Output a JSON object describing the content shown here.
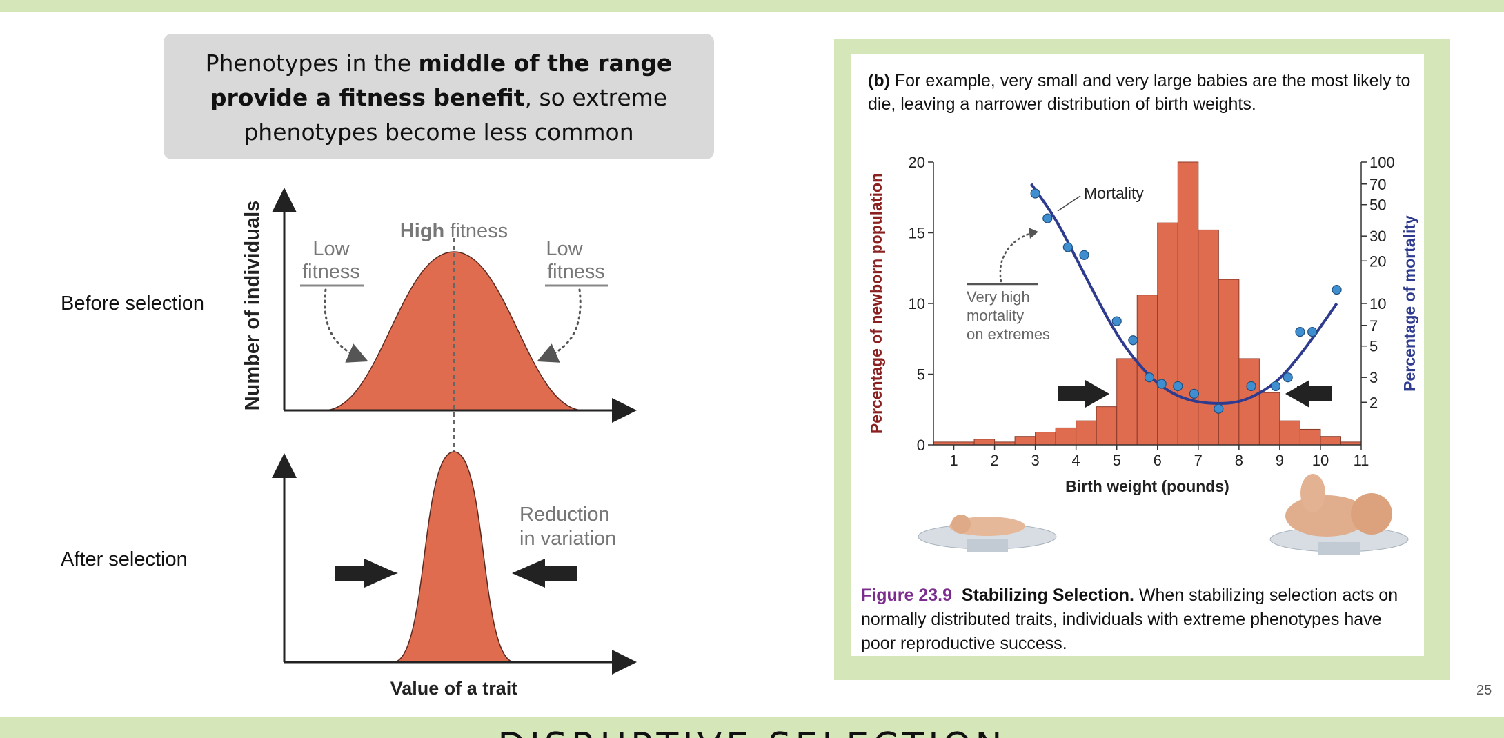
{
  "callout": {
    "line1_pre": "Phenotypes in the ",
    "line1_bold": "middle of the range",
    "line2_bold": "provide a fitness benefit",
    "line2_post": ", so extreme",
    "line3": "phenotypes become less common"
  },
  "left_diagram": {
    "before_label": "Before selection",
    "after_label": "After selection",
    "y_axis_label": "Number of individuals",
    "x_axis_label": "Value of a trait",
    "high_bold": "High",
    "high_rest": " fitness",
    "low_left_1": "Low",
    "low_left_2": "fitness",
    "low_right_1": "Low",
    "low_right_2": "fitness",
    "reduction_1": "Reduction",
    "reduction_2": "in variation",
    "curve_color": "#e06c50",
    "arrow_color": "#222222"
  },
  "figure": {
    "desc_bold": "(b)",
    "desc_text": " For example, very small and very large babies are the most likely to die, leaving a narrower distribution of birth weights.",
    "caption_num": "Figure 23.9",
    "caption_title": "Stabilizing Selection.",
    "caption_text": " When stabilizing selection acts on normally distributed traits, individuals with extreme phenotypes have poor reproductive success.",
    "mortality_label": "Mortality",
    "extremes_1": "Very high",
    "extremes_2": "mortality",
    "extremes_3": "on extremes"
  },
  "chart_data": {
    "type": "bar",
    "xlabel": "Birth weight (pounds)",
    "ylabel": "Percentage of newborn population",
    "ylabel_right": "Percentage of mortality",
    "x_ticks": [
      "1",
      "2",
      "3",
      "4",
      "5",
      "6",
      "7",
      "8",
      "9",
      "10",
      "11"
    ],
    "y_ticks": [
      "0",
      "5",
      "10",
      "15",
      "20"
    ],
    "y_right_ticks": [
      "100",
      "70",
      "50",
      "30",
      "20",
      "10",
      "7",
      "5",
      "3",
      "2"
    ],
    "xlim": [
      0.5,
      11
    ],
    "ylim": [
      0,
      20
    ],
    "yright_scale": "log",
    "yright_lim": [
      1,
      100
    ],
    "bins": [
      {
        "x0": 0.5,
        "x1": 1.5,
        "value": 0.2
      },
      {
        "x0": 1.5,
        "x1": 2.0,
        "value": 0.4
      },
      {
        "x0": 2.0,
        "x1": 2.5,
        "value": 0.2
      },
      {
        "x0": 2.5,
        "x1": 3.0,
        "value": 0.6
      },
      {
        "x0": 3.0,
        "x1": 3.5,
        "value": 0.9
      },
      {
        "x0": 3.5,
        "x1": 4.0,
        "value": 1.2
      },
      {
        "x0": 4.0,
        "x1": 4.5,
        "value": 1.7
      },
      {
        "x0": 4.5,
        "x1": 5.0,
        "value": 2.7
      },
      {
        "x0": 5.0,
        "x1": 5.5,
        "value": 6.1
      },
      {
        "x0": 5.5,
        "x1": 6.0,
        "value": 10.6
      },
      {
        "x0": 6.0,
        "x1": 6.5,
        "value": 15.7
      },
      {
        "x0": 6.5,
        "x1": 7.0,
        "value": 20.0
      },
      {
        "x0": 7.0,
        "x1": 7.5,
        "value": 15.2
      },
      {
        "x0": 7.5,
        "x1": 8.0,
        "value": 11.7
      },
      {
        "x0": 8.0,
        "x1": 8.5,
        "value": 6.1
      },
      {
        "x0": 8.5,
        "x1": 9.0,
        "value": 3.7
      },
      {
        "x0": 9.0,
        "x1": 9.5,
        "value": 1.7
      },
      {
        "x0": 9.5,
        "x1": 10.0,
        "value": 1.1
      },
      {
        "x0": 10.0,
        "x1": 10.5,
        "value": 0.6
      },
      {
        "x0": 10.5,
        "x1": 11.0,
        "value": 0.2
      }
    ],
    "mortality_points": [
      {
        "x": 3.0,
        "y": 60
      },
      {
        "x": 3.3,
        "y": 40
      },
      {
        "x": 3.8,
        "y": 25
      },
      {
        "x": 4.2,
        "y": 22
      },
      {
        "x": 5.0,
        "y": 7.5
      },
      {
        "x": 5.4,
        "y": 5.5
      },
      {
        "x": 5.8,
        "y": 3.0
      },
      {
        "x": 6.1,
        "y": 2.7
      },
      {
        "x": 6.5,
        "y": 2.6
      },
      {
        "x": 6.9,
        "y": 2.3
      },
      {
        "x": 7.5,
        "y": 1.8
      },
      {
        "x": 8.3,
        "y": 2.6
      },
      {
        "x": 8.9,
        "y": 2.6
      },
      {
        "x": 9.2,
        "y": 3.0
      },
      {
        "x": 9.5,
        "y": 6.3
      },
      {
        "x": 9.8,
        "y": 6.3
      },
      {
        "x": 10.4,
        "y": 12.5
      }
    ],
    "mortality_curve": [
      {
        "x": 2.9,
        "y": 70
      },
      {
        "x": 3.5,
        "y": 40
      },
      {
        "x": 4.0,
        "y": 21
      },
      {
        "x": 4.5,
        "y": 11
      },
      {
        "x": 5.0,
        "y": 6.0
      },
      {
        "x": 5.5,
        "y": 3.8
      },
      {
        "x": 6.0,
        "y": 2.7
      },
      {
        "x": 6.5,
        "y": 2.2
      },
      {
        "x": 7.0,
        "y": 2.0
      },
      {
        "x": 7.5,
        "y": 1.95
      },
      {
        "x": 8.0,
        "y": 2.0
      },
      {
        "x": 8.5,
        "y": 2.3
      },
      {
        "x": 9.0,
        "y": 2.9
      },
      {
        "x": 9.5,
        "y": 4.3
      },
      {
        "x": 10.0,
        "y": 6.8
      },
      {
        "x": 10.4,
        "y": 10.0
      }
    ],
    "bar_color": "#e06c50",
    "curve_color": "#2e3b8f",
    "point_color": "#3f8fd0",
    "ylabel_color": "#8b2020",
    "ylabel_right_color": "#2e3b8f"
  },
  "page_number": "25",
  "next_slide_title": "DISRUPTIVE SELECTION"
}
